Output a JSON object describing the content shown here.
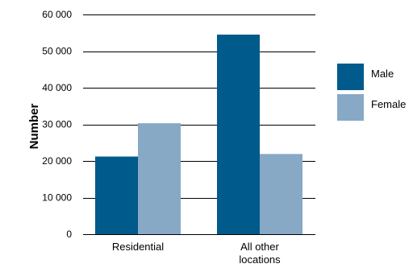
{
  "chart_data": {
    "type": "bar",
    "ylabel": "Number",
    "categories": [
      "Residential",
      "All other locations"
    ],
    "category_lines": [
      [
        "Residential"
      ],
      [
        "All other",
        "locations"
      ]
    ],
    "series": [
      {
        "name": "Male",
        "color": "#005a8c",
        "values": [
          21200,
          54500
        ]
      },
      {
        "name": "Female",
        "color": "#87a9c6",
        "values": [
          30300,
          21900
        ]
      }
    ],
    "ylim": [
      0,
      60000
    ],
    "yticks": [
      0,
      10000,
      20000,
      30000,
      40000,
      50000,
      60000
    ],
    "ytick_labels": [
      "0",
      "10 000",
      "20 000",
      "30 000",
      "40 000",
      "50 000",
      "60 000"
    ],
    "grid": true,
    "legend_position": "right"
  }
}
